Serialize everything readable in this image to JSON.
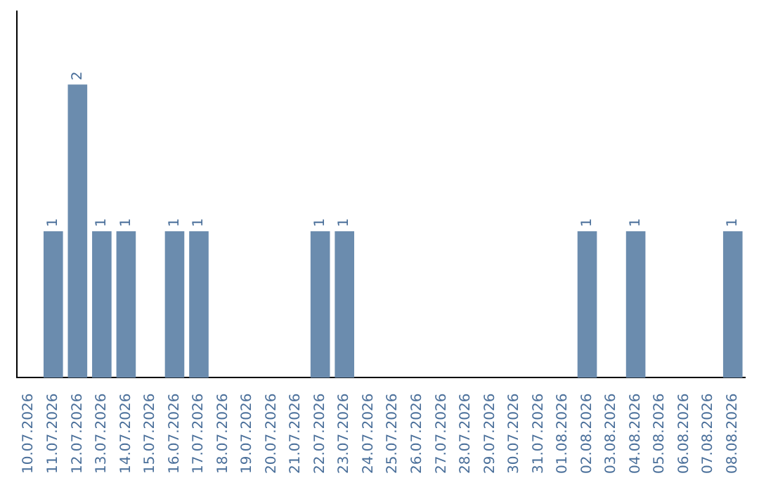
{
  "chart_data": {
    "type": "bar",
    "categories": [
      "10.07.2026",
      "11.07.2026",
      "12.07.2026",
      "13.07.2026",
      "14.07.2026",
      "15.07.2026",
      "16.07.2026",
      "17.07.2026",
      "18.07.2026",
      "19.07.2026",
      "20.07.2026",
      "21.07.2026",
      "22.07.2026",
      "23.07.2026",
      "24.07.2026",
      "25.07.2026",
      "26.07.2026",
      "27.07.2026",
      "28.07.2026",
      "29.07.2026",
      "30.07.2026",
      "31.07.2026",
      "01.08.2026",
      "02.08.2026",
      "03.08.2026",
      "04.08.2026",
      "05.08.2026",
      "06.08.2026",
      "07.08.2026",
      "08.08.2026"
    ],
    "values": [
      0,
      1,
      2,
      1,
      1,
      0,
      1,
      1,
      0,
      0,
      0,
      0,
      1,
      1,
      0,
      0,
      0,
      0,
      0,
      0,
      0,
      0,
      0,
      1,
      0,
      1,
      0,
      0,
      0,
      1
    ],
    "value_labels": [
      null,
      "1",
      "2",
      "1",
      "1",
      null,
      "1",
      "1",
      null,
      null,
      null,
      null,
      "1",
      "1",
      null,
      null,
      null,
      null,
      null,
      null,
      null,
      null,
      null,
      "1",
      null,
      "1",
      null,
      null,
      null,
      "1"
    ],
    "color": "#6b8cae",
    "grid": false,
    "legend": false,
    "tick_labels": "x"
  }
}
